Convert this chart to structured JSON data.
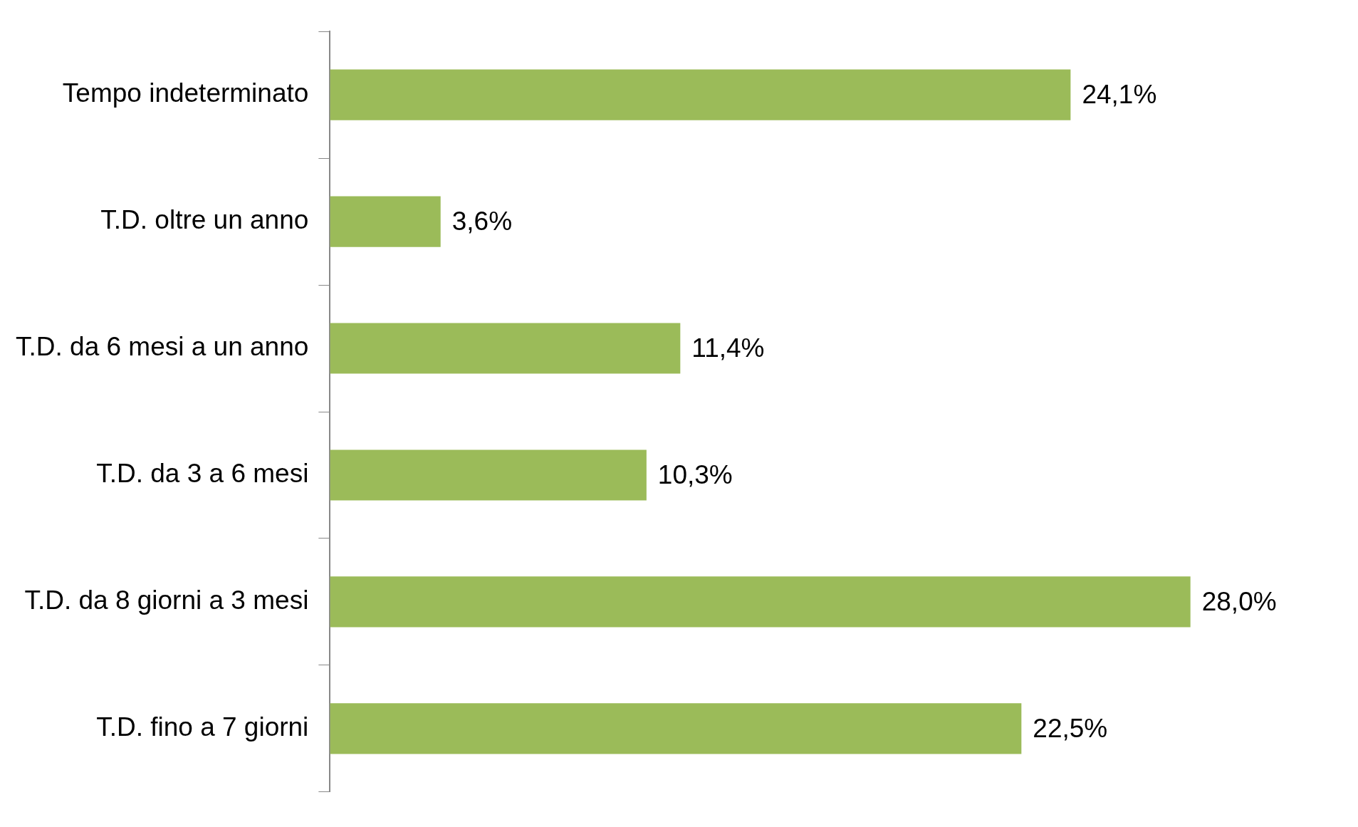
{
  "chart_data": {
    "type": "bar",
    "orientation": "horizontal",
    "categories": [
      "Tempo indeterminato",
      "T.D. oltre un anno",
      "T.D. da 6 mesi a un anno",
      "T.D. da 3 a 6 mesi",
      "T.D. da 8 giorni a 3 mesi",
      "T.D. fino a 7 giorni"
    ],
    "values": [
      24.1,
      3.6,
      11.4,
      10.3,
      28.0,
      22.5
    ],
    "value_labels": [
      "24,1%",
      "3,6%",
      "11,4%",
      "10,3%",
      "28,0%",
      "22,5%"
    ],
    "color": "#9bbb59",
    "legend": false,
    "tick_labels": "y"
  }
}
